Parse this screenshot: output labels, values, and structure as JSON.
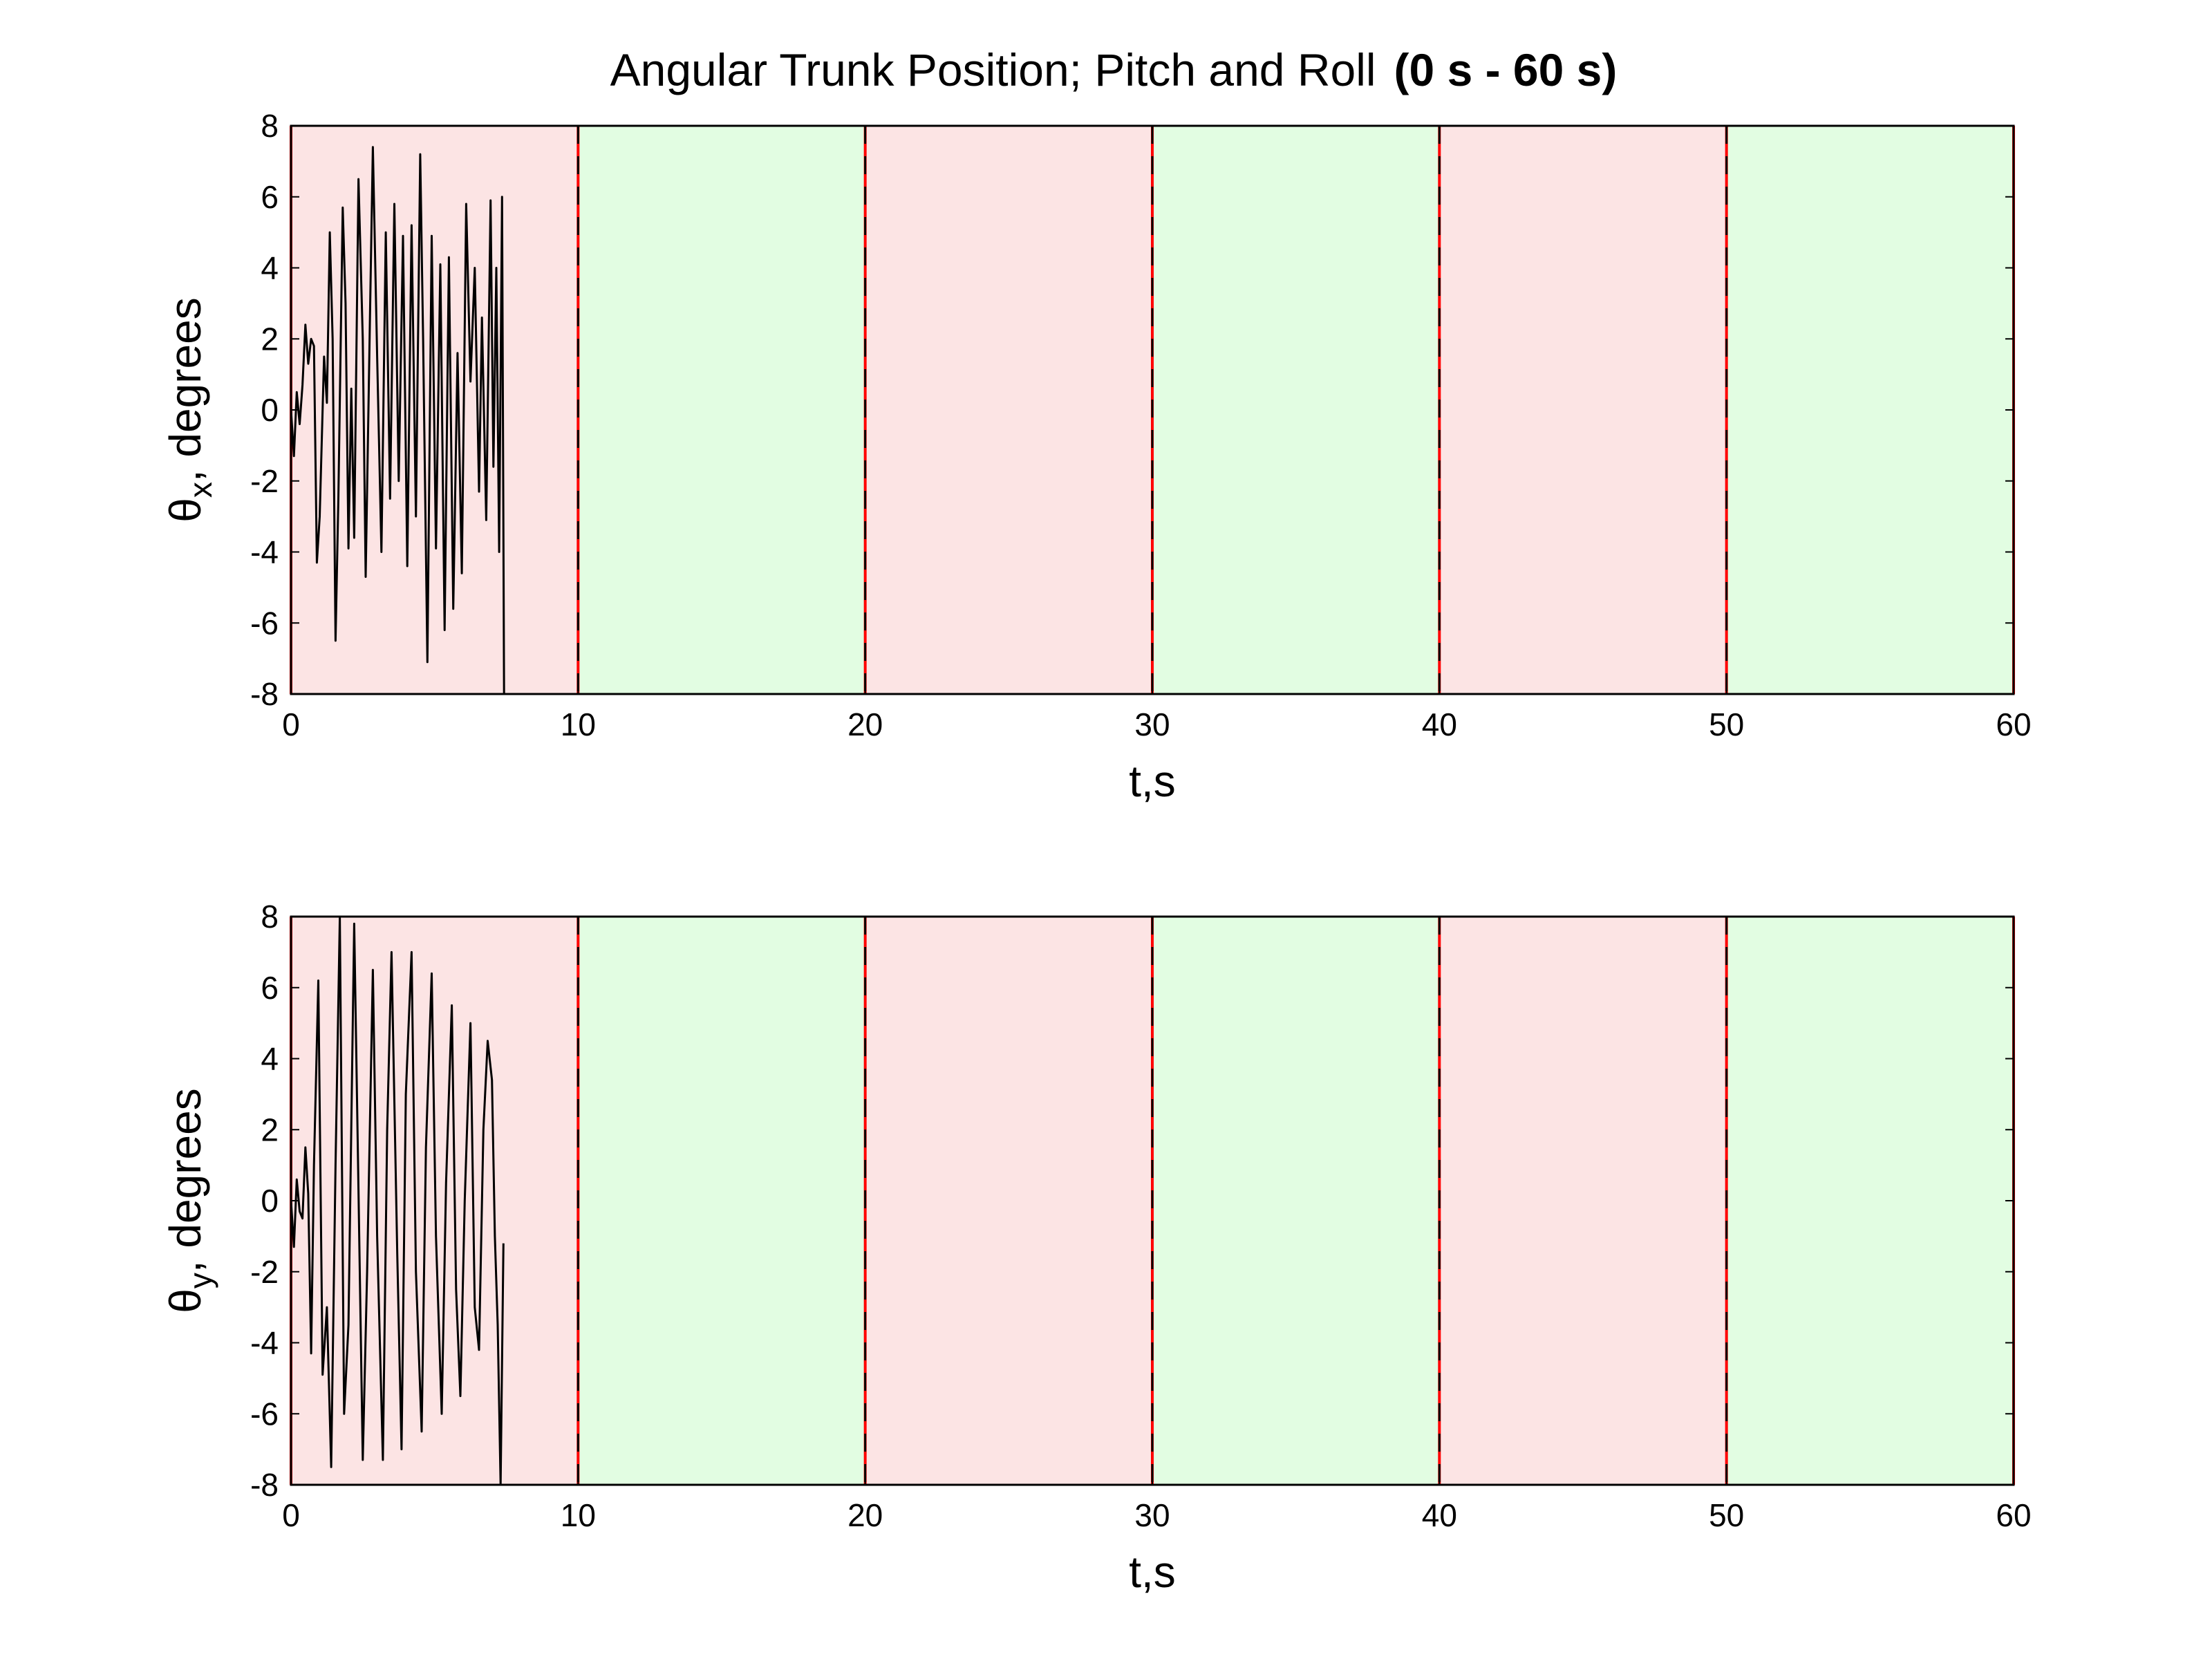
{
  "figure": {
    "title": "Angular Trunk Position; Pitch and Roll",
    "title_bold": "(0 s - 60 s)"
  },
  "colors": {
    "band_red": "#fce4e4",
    "band_green": "#e2fde2",
    "divider_red": "#ff0000",
    "divider_black": "#000000",
    "trace": "#000000",
    "axes": "#000000",
    "background": "#ffffff"
  },
  "chart_data": [
    {
      "type": "line",
      "xlabel": "t,s",
      "ylabel_symbol": "θ",
      "ylabel_subscript": "x",
      "ylabel_rest": ", degrees",
      "xlim": [
        0,
        60
      ],
      "ylim": [
        -8,
        8
      ],
      "xticks": [
        "0",
        "10",
        "20",
        "30",
        "40",
        "50",
        "60"
      ],
      "yticks": [
        "-8",
        "-6",
        "-4",
        "-2",
        "0",
        "2",
        "4",
        "6",
        "8"
      ],
      "grid": false,
      "bands": [
        {
          "x0": 0,
          "x1": 10,
          "color": "red"
        },
        {
          "x0": 10,
          "x1": 20,
          "color": "green"
        },
        {
          "x0": 20,
          "x1": 30,
          "color": "red"
        },
        {
          "x0": 30,
          "x1": 40,
          "color": "green"
        },
        {
          "x0": 40,
          "x1": 50,
          "color": "red"
        },
        {
          "x0": 50,
          "x1": 60,
          "color": "green"
        }
      ],
      "dividers": [
        0,
        10,
        20,
        30,
        40,
        50,
        60
      ],
      "series": [
        {
          "x": [
            0,
            0.1,
            0.2,
            0.3,
            0.4,
            0.5,
            0.6,
            0.7,
            0.8,
            0.9,
            1.0,
            1.15,
            1.25,
            1.35,
            1.45,
            1.55,
            1.65,
            1.8,
            1.9,
            2.0,
            2.1,
            2.2,
            2.35,
            2.5,
            2.6,
            2.75,
            2.85,
            3.0,
            3.15,
            3.3,
            3.45,
            3.6,
            3.75,
            3.9,
            4.05,
            4.2,
            4.35,
            4.5,
            4.6,
            4.75,
            4.9,
            5.05,
            5.2,
            5.35,
            5.5,
            5.65,
            5.8,
            5.95,
            6.1,
            6.25,
            6.4,
            6.55,
            6.65,
            6.8,
            6.95,
            7.05,
            7.15,
            7.25,
            7.35,
            7.42
          ],
          "y": [
            0,
            -1.3,
            0.5,
            -0.4,
            0.7,
            2.4,
            1.3,
            2.0,
            1.8,
            -4.3,
            -3.0,
            1.5,
            0.2,
            5.0,
            2.0,
            -6.5,
            -2.5,
            5.7,
            3.0,
            -3.9,
            0.6,
            -3.6,
            6.5,
            2.0,
            -4.7,
            2.6,
            7.4,
            1.5,
            -4.0,
            5.0,
            -2.5,
            5.8,
            -2.0,
            4.9,
            -4.4,
            5.2,
            -3.0,
            7.2,
            2.0,
            -7.1,
            4.9,
            -3.9,
            4.1,
            -6.2,
            4.3,
            -5.6,
            1.6,
            -4.6,
            5.8,
            0.8,
            4.0,
            -2.3,
            2.6,
            -3.1,
            5.9,
            -1.6,
            4.0,
            -4.0,
            6.0,
            -8.0
          ]
        }
      ]
    },
    {
      "type": "line",
      "xlabel": "t,s",
      "ylabel_symbol": "θ",
      "ylabel_subscript": "y",
      "ylabel_rest": ", degrees",
      "xlim": [
        0,
        60
      ],
      "ylim": [
        -8,
        8
      ],
      "xticks": [
        "0",
        "10",
        "20",
        "30",
        "40",
        "50",
        "60"
      ],
      "yticks": [
        "-8",
        "-6",
        "-4",
        "-2",
        "0",
        "2",
        "4",
        "6",
        "8"
      ],
      "grid": false,
      "bands": [
        {
          "x0": 0,
          "x1": 10,
          "color": "red"
        },
        {
          "x0": 10,
          "x1": 20,
          "color": "green"
        },
        {
          "x0": 20,
          "x1": 30,
          "color": "red"
        },
        {
          "x0": 30,
          "x1": 40,
          "color": "green"
        },
        {
          "x0": 40,
          "x1": 50,
          "color": "red"
        },
        {
          "x0": 50,
          "x1": 60,
          "color": "green"
        }
      ],
      "dividers": [
        0,
        10,
        20,
        30,
        40,
        50,
        60
      ],
      "series": [
        {
          "x": [
            0,
            0.1,
            0.2,
            0.3,
            0.4,
            0.5,
            0.6,
            0.7,
            0.8,
            0.95,
            1.1,
            1.25,
            1.4,
            1.55,
            1.7,
            1.85,
            2.0,
            2.2,
            2.35,
            2.5,
            2.65,
            2.85,
            3.0,
            3.2,
            3.35,
            3.5,
            3.7,
            3.85,
            4.0,
            4.2,
            4.35,
            4.55,
            4.7,
            4.9,
            5.05,
            5.25,
            5.4,
            5.6,
            5.75,
            5.9,
            6.05,
            6.25,
            6.4,
            6.55,
            6.7,
            6.85,
            7.0,
            7.1,
            7.2,
            7.3,
            7.4
          ],
          "y": [
            0,
            -1.3,
            0.6,
            -0.3,
            -0.5,
            1.5,
            0.2,
            -4.3,
            1.0,
            6.2,
            -4.9,
            -3.0,
            -7.5,
            1.0,
            8.0,
            -6.0,
            -3.5,
            7.8,
            0.3,
            -7.3,
            -2.0,
            6.5,
            -1.0,
            -7.3,
            2.0,
            7.0,
            -1.5,
            -7.0,
            3.0,
            7.0,
            -2.0,
            -6.5,
            1.5,
            6.4,
            -1.0,
            -6.0,
            0.5,
            5.5,
            -2.5,
            -5.5,
            0.0,
            5.0,
            -3.0,
            -4.2,
            2.0,
            4.5,
            3.4,
            -1.0,
            -3.5,
            -8.0,
            -1.2
          ]
        }
      ]
    }
  ]
}
